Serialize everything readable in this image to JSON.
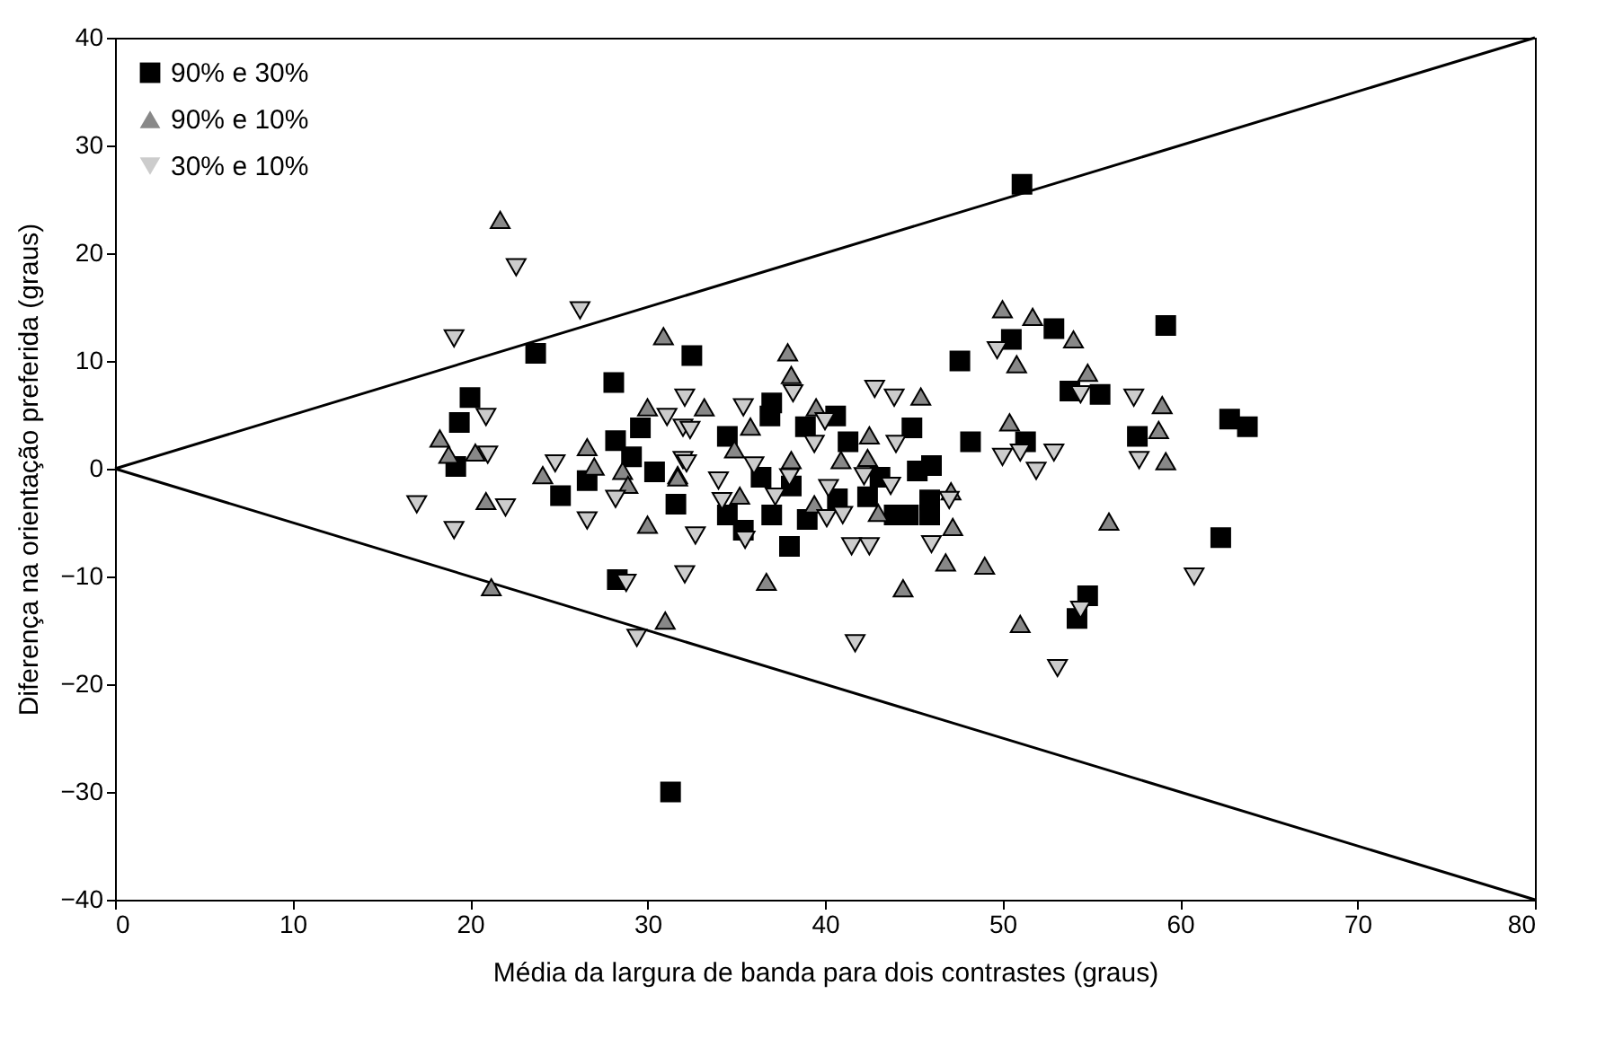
{
  "chart_data": {
    "type": "scatter",
    "xlabel": "Média da largura de banda para dois contrastes (graus)",
    "ylabel": "Diferença na orientação preferida (graus)",
    "xlim": [
      0,
      80
    ],
    "ylim": [
      -40,
      40
    ],
    "xticks": [
      0,
      10,
      20,
      30,
      40,
      50,
      60,
      70,
      80
    ],
    "yticks": [
      -40,
      -30,
      -20,
      -10,
      0,
      10,
      20,
      30,
      40
    ],
    "grid": false,
    "legend": "top left",
    "series": [
      {
        "name": "90% e 30%",
        "marker": "square",
        "color": "#000000",
        "x": [
          23.7,
          20.0,
          19.4,
          19.2,
          28.1,
          32.5,
          29.6,
          28.2,
          29.1,
          26.6,
          25.1,
          30.4,
          31.6,
          28.3,
          31.3,
          50.5,
          52.9,
          47.6,
          37.0,
          36.9,
          40.6,
          38.9,
          41.3,
          34.5,
          44.9,
          46.0,
          45.2,
          48.2,
          36.4,
          38.1,
          40.7,
          42.4,
          43.1,
          45.9,
          45.9,
          43.9,
          44.7,
          39.0,
          37.0,
          34.5,
          35.4,
          38.0,
          51.3,
          53.8,
          55.5,
          54.8,
          54.2,
          51.1,
          59.2,
          62.8,
          57.6,
          62.3,
          63.8
        ],
        "values": [
          10.7,
          6.6,
          4.3,
          0.2,
          8.0,
          10.5,
          3.8,
          2.6,
          1.1,
          -1.1,
          -2.5,
          -0.3,
          -3.3,
          -10.3,
          -30.0,
          12.0,
          13.0,
          10.0,
          6.1,
          4.9,
          4.9,
          3.9,
          2.5,
          3.0,
          3.8,
          0.3,
          -0.2,
          2.5,
          -0.8,
          -1.6,
          -2.8,
          -2.6,
          -0.8,
          -2.9,
          -4.3,
          -4.3,
          -4.3,
          -4.7,
          -4.3,
          -4.3,
          -5.7,
          -7.2,
          2.5,
          7.2,
          6.9,
          -11.8,
          -13.9,
          26.4,
          13.3,
          4.6,
          3.0,
          -6.4,
          3.9
        ]
      },
      {
        "name": "90% e 10%",
        "marker": "triangle",
        "color": "#888888",
        "x": [
          21.7,
          30.9,
          30.0,
          18.3,
          18.8,
          20.3,
          26.6,
          27.0,
          24.1,
          28.6,
          28.9,
          31.7,
          20.9,
          30.0,
          21.2,
          31.0,
          37.9,
          38.1,
          54.0,
          50.8,
          54.8,
          50.4,
          45.4,
          33.2,
          35.8,
          34.9,
          39.5,
          38.1,
          42.5,
          40.9,
          42.4,
          31.7,
          35.2,
          39.4,
          43.0,
          47.1,
          47.2,
          46.8,
          49.0,
          36.7,
          44.4,
          56.0,
          51.0,
          50.0,
          51.7,
          59.0,
          58.8,
          59.2
        ],
        "values": [
          23.1,
          12.3,
          5.7,
          2.8,
          1.3,
          1.5,
          2.0,
          0.2,
          -0.6,
          -0.2,
          -1.5,
          -0.6,
          -3.0,
          -5.2,
          -11.0,
          -14.1,
          10.8,
          8.7,
          12.0,
          9.7,
          8.9,
          4.3,
          6.7,
          5.7,
          3.9,
          1.8,
          5.7,
          0.8,
          3.1,
          0.8,
          1.0,
          -0.8,
          -2.5,
          -3.3,
          -4.1,
          -2.1,
          -5.4,
          -8.7,
          -9.0,
          -10.5,
          -11.1,
          -4.9,
          -14.4,
          14.8,
          14.1,
          5.9,
          3.6,
          0.7
        ]
      },
      {
        "name": "30% e 10%",
        "marker": "triangle-down",
        "color": "#cccccc",
        "x": [
          22.6,
          26.2,
          19.1,
          20.9,
          21.0,
          17.0,
          19.1,
          22.0,
          24.8,
          28.2,
          26.6,
          32.1,
          31.1,
          32.0,
          32.0,
          32.7,
          32.1,
          28.8,
          29.4,
          35.4,
          32.4,
          32.2,
          34.0,
          34.2,
          36.0,
          37.2,
          38.0,
          38.2,
          40.0,
          39.4,
          40.2,
          40.1,
          41.0,
          42.8,
          43.9,
          44.0,
          43.7,
          42.2,
          47.0,
          46.0,
          41.5,
          42.5,
          35.5,
          41.7,
          49.7,
          50.0,
          51.0,
          51.9,
          52.9,
          54.4,
          54.4,
          53.1,
          57.4,
          57.7,
          60.8
        ],
        "values": [
          18.7,
          14.7,
          12.1,
          4.8,
          1.3,
          -3.3,
          -5.7,
          -3.6,
          0.5,
          -2.8,
          -4.8,
          6.6,
          4.8,
          3.8,
          0.8,
          -6.2,
          -9.8,
          -10.6,
          -15.7,
          5.7,
          3.6,
          0.5,
          -1.1,
          -3.0,
          0.3,
          -2.6,
          -0.8,
          7.0,
          4.4,
          2.3,
          -1.8,
          -4.6,
          -4.3,
          7.4,
          6.6,
          2.3,
          -1.6,
          -0.7,
          -2.9,
          -7.0,
          -7.2,
          -7.2,
          -6.6,
          -16.2,
          11.0,
          1.1,
          1.5,
          -0.2,
          1.5,
          6.9,
          -13.1,
          -18.5,
          6.6,
          0.8,
          -10.0
        ]
      },
      {
        "type": "line",
        "color": "#000000",
        "x": [
          0,
          80
        ],
        "values": [
          0,
          40
        ]
      },
      {
        "type": "line",
        "color": "#000000",
        "x": [
          0,
          80
        ],
        "values": [
          0,
          -40
        ]
      }
    ]
  }
}
